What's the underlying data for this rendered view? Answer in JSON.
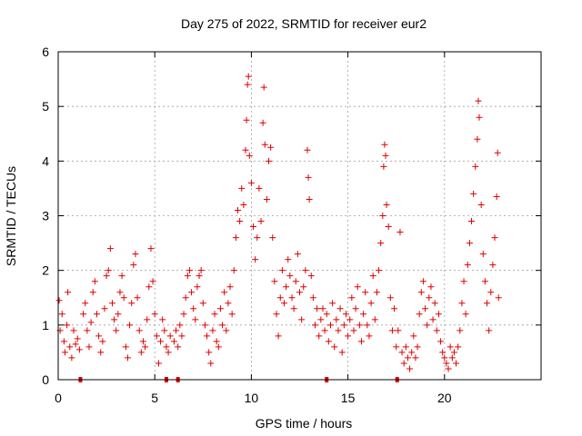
{
  "chart_data": {
    "type": "scatter",
    "title": "Day 275 of 2022, SRMTID for receiver eur2",
    "xlabel": "GPS time / hours",
    "ylabel": "SRMTID / TECUs",
    "xlim": [
      0,
      25
    ],
    "ylim": [
      0,
      6
    ],
    "xticks": [
      0,
      5,
      10,
      15,
      20
    ],
    "yticks": [
      0,
      1,
      2,
      3,
      4,
      5,
      6
    ],
    "grid": true,
    "marker": "plus",
    "color": "#e00000",
    "series": [
      {
        "name": "SRMTID",
        "points": [
          [
            0.05,
            1.45
          ],
          [
            0.1,
            0.9
          ],
          [
            0.2,
            1.2
          ],
          [
            0.3,
            0.7
          ],
          [
            0.35,
            0.5
          ],
          [
            0.45,
            1.0
          ],
          [
            0.5,
            1.6
          ],
          [
            0.6,
            0.6
          ],
          [
            0.7,
            0.4
          ],
          [
            0.8,
            0.9
          ],
          [
            0.9,
            0.65
          ],
          [
            1.0,
            0.75
          ],
          [
            1.1,
            0.55
          ],
          [
            1.3,
            1.2
          ],
          [
            1.4,
            1.4
          ],
          [
            1.5,
            0.9
          ],
          [
            1.6,
            0.6
          ],
          [
            1.7,
            1.05
          ],
          [
            1.8,
            1.6
          ],
          [
            1.9,
            1.8
          ],
          [
            2.0,
            1.2
          ],
          [
            2.1,
            0.8
          ],
          [
            2.2,
            0.5
          ],
          [
            2.3,
            0.7
          ],
          [
            2.4,
            1.3
          ],
          [
            2.5,
            1.9
          ],
          [
            2.6,
            2.0
          ],
          [
            2.7,
            2.4
          ],
          [
            2.8,
            1.4
          ],
          [
            2.9,
            1.1
          ],
          [
            3.0,
            0.9
          ],
          [
            3.1,
            1.2
          ],
          [
            3.2,
            1.6
          ],
          [
            3.3,
            1.9
          ],
          [
            3.4,
            1.5
          ],
          [
            3.5,
            0.6
          ],
          [
            3.6,
            0.4
          ],
          [
            3.7,
            1.0
          ],
          [
            3.8,
            1.4
          ],
          [
            3.9,
            2.1
          ],
          [
            4.0,
            2.3
          ],
          [
            4.1,
            1.5
          ],
          [
            4.2,
            0.9
          ],
          [
            4.3,
            0.5
          ],
          [
            4.4,
            0.7
          ],
          [
            4.5,
            0.6
          ],
          [
            4.6,
            1.1
          ],
          [
            4.7,
            1.7
          ],
          [
            4.8,
            2.4
          ],
          [
            4.9,
            1.8
          ],
          [
            5.0,
            1.2
          ],
          [
            5.1,
            0.8
          ],
          [
            5.2,
            0.3
          ],
          [
            5.3,
            0.7
          ],
          [
            5.4,
            1.1
          ],
          [
            5.5,
            0.9
          ],
          [
            5.6,
            0.6
          ],
          [
            5.7,
            0.5
          ],
          [
            5.8,
            0.8
          ],
          [
            6.0,
            0.7
          ],
          [
            6.1,
            0.9
          ],
          [
            6.2,
            0.6
          ],
          [
            6.3,
            1.0
          ],
          [
            6.4,
            0.8
          ],
          [
            6.5,
            1.2
          ],
          [
            6.6,
            1.5
          ],
          [
            6.7,
            1.9
          ],
          [
            6.8,
            2.0
          ],
          [
            6.9,
            1.6
          ],
          [
            7.0,
            1.3
          ],
          [
            7.1,
            1.1
          ],
          [
            7.2,
            1.7
          ],
          [
            7.3,
            1.9
          ],
          [
            7.4,
            2.0
          ],
          [
            7.5,
            1.4
          ],
          [
            7.6,
            1.0
          ],
          [
            7.7,
            0.8
          ],
          [
            7.8,
            0.5
          ],
          [
            7.9,
            0.3
          ],
          [
            8.0,
            0.9
          ],
          [
            8.1,
            1.2
          ],
          [
            8.2,
            0.7
          ],
          [
            8.3,
            0.6
          ],
          [
            8.4,
            1.3
          ],
          [
            8.5,
            1.0
          ],
          [
            8.6,
            1.6
          ],
          [
            8.7,
            0.9
          ],
          [
            8.8,
            1.4
          ],
          [
            8.9,
            1.7
          ],
          [
            9.0,
            1.2
          ],
          [
            9.1,
            2.0
          ],
          [
            9.2,
            2.6
          ],
          [
            9.3,
            3.1
          ],
          [
            9.4,
            2.9
          ],
          [
            9.5,
            3.5
          ],
          [
            9.6,
            3.2
          ],
          [
            9.7,
            4.2
          ],
          [
            9.75,
            4.75
          ],
          [
            9.8,
            5.4
          ],
          [
            9.85,
            5.55
          ],
          [
            9.9,
            4.1
          ],
          [
            10.0,
            3.6
          ],
          [
            10.1,
            2.8
          ],
          [
            10.2,
            2.2
          ],
          [
            10.3,
            2.6
          ],
          [
            10.4,
            3.5
          ],
          [
            10.5,
            2.9
          ],
          [
            10.6,
            4.7
          ],
          [
            10.65,
            5.35
          ],
          [
            10.7,
            4.3
          ],
          [
            10.8,
            3.3
          ],
          [
            10.9,
            4.0
          ],
          [
            11.0,
            4.25
          ],
          [
            11.1,
            2.6
          ],
          [
            11.2,
            1.8
          ],
          [
            11.3,
            1.2
          ],
          [
            11.4,
            0.8
          ],
          [
            11.5,
            1.5
          ],
          [
            11.6,
            2.0
          ],
          [
            11.7,
            1.4
          ],
          [
            11.8,
            1.7
          ],
          [
            11.9,
            2.2
          ],
          [
            12.0,
            1.9
          ],
          [
            12.1,
            1.5
          ],
          [
            12.2,
            1.3
          ],
          [
            12.3,
            1.8
          ],
          [
            12.4,
            2.3
          ],
          [
            12.5,
            1.6
          ],
          [
            12.6,
            1.1
          ],
          [
            12.7,
            1.7
          ],
          [
            12.8,
            2.0
          ],
          [
            12.9,
            4.2
          ],
          [
            12.95,
            3.7
          ],
          [
            13.0,
            3.3
          ],
          [
            13.1,
            1.9
          ],
          [
            13.2,
            1.5
          ],
          [
            13.3,
            1.0
          ],
          [
            13.4,
            1.3
          ],
          [
            13.5,
            0.8
          ],
          [
            13.6,
            1.1
          ],
          [
            13.7,
            1.3
          ],
          [
            13.8,
            0.9
          ],
          [
            13.9,
            1.2
          ],
          [
            14.0,
            0.7
          ],
          [
            14.1,
            1.0
          ],
          [
            14.2,
            1.4
          ],
          [
            14.3,
            0.6
          ],
          [
            14.4,
            1.1
          ],
          [
            14.5,
            0.9
          ],
          [
            14.6,
            1.3
          ],
          [
            14.7,
            0.5
          ],
          [
            14.8,
            1.0
          ],
          [
            14.9,
            1.2
          ],
          [
            15.0,
            0.8
          ],
          [
            15.1,
            1.1
          ],
          [
            15.2,
            1.5
          ],
          [
            15.3,
            0.9
          ],
          [
            15.4,
            1.3
          ],
          [
            15.5,
            1.7
          ],
          [
            15.6,
            1.0
          ],
          [
            15.7,
            0.7
          ],
          [
            15.8,
            1.2
          ],
          [
            15.9,
            1.6
          ],
          [
            16.0,
            1.0
          ],
          [
            16.1,
            0.8
          ],
          [
            16.2,
            1.4
          ],
          [
            16.3,
            1.9
          ],
          [
            16.4,
            1.1
          ],
          [
            16.5,
            1.6
          ],
          [
            16.6,
            2.0
          ],
          [
            16.7,
            2.5
          ],
          [
            16.8,
            3.0
          ],
          [
            16.85,
            3.9
          ],
          [
            16.9,
            4.3
          ],
          [
            16.95,
            4.1
          ],
          [
            17.0,
            3.2
          ],
          [
            17.1,
            2.8
          ],
          [
            17.2,
            1.5
          ],
          [
            17.3,
            0.9
          ],
          [
            17.4,
            1.3
          ],
          [
            17.5,
            0.6
          ],
          [
            17.6,
            0.9
          ],
          [
            17.7,
            2.7
          ],
          [
            17.8,
            0.5
          ],
          [
            17.9,
            0.3
          ],
          [
            18.0,
            0.6
          ],
          [
            18.1,
            0.4
          ],
          [
            18.2,
            0.2
          ],
          [
            18.3,
            0.5
          ],
          [
            18.4,
            0.8
          ],
          [
            18.5,
            0.4
          ],
          [
            18.6,
            0.6
          ],
          [
            18.7,
            1.2
          ],
          [
            18.8,
            1.6
          ],
          [
            18.9,
            1.8
          ],
          [
            19.0,
            1.3
          ],
          [
            19.1,
            1.0
          ],
          [
            19.2,
            1.5
          ],
          [
            19.3,
            1.7
          ],
          [
            19.4,
            1.1
          ],
          [
            19.5,
            1.4
          ],
          [
            19.6,
            0.9
          ],
          [
            19.7,
            1.2
          ],
          [
            19.8,
            0.7
          ],
          [
            19.9,
            0.5
          ],
          [
            20.0,
            0.4
          ],
          [
            20.1,
            0.3
          ],
          [
            20.2,
            0.2
          ],
          [
            20.3,
            0.6
          ],
          [
            20.4,
            0.4
          ],
          [
            20.5,
            0.5
          ],
          [
            20.6,
            0.3
          ],
          [
            20.7,
            0.6
          ],
          [
            20.8,
            0.9
          ],
          [
            20.9,
            1.4
          ],
          [
            21.0,
            1.8
          ],
          [
            21.1,
            1.2
          ],
          [
            21.2,
            2.1
          ],
          [
            21.3,
            2.5
          ],
          [
            21.4,
            2.9
          ],
          [
            21.5,
            3.4
          ],
          [
            21.6,
            3.9
          ],
          [
            21.7,
            4.4
          ],
          [
            21.75,
            5.1
          ],
          [
            21.8,
            4.8
          ],
          [
            21.9,
            3.2
          ],
          [
            22.0,
            2.3
          ],
          [
            22.1,
            1.8
          ],
          [
            22.2,
            1.4
          ],
          [
            22.3,
            0.9
          ],
          [
            22.4,
            1.6
          ],
          [
            22.5,
            2.1
          ],
          [
            22.6,
            2.6
          ],
          [
            22.7,
            3.35
          ],
          [
            22.75,
            4.15
          ],
          [
            22.8,
            1.5
          ]
        ]
      }
    ],
    "baseline_markers_x": [
      1.15,
      5.6,
      6.2,
      13.9,
      17.55
    ]
  }
}
